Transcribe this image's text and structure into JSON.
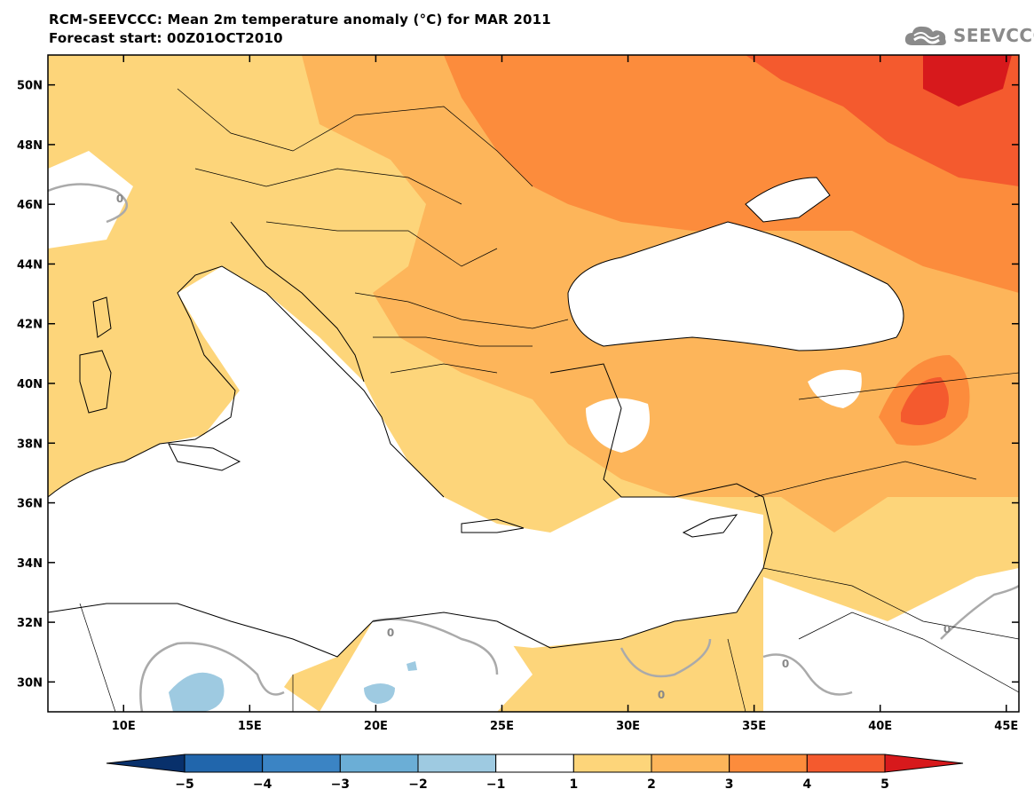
{
  "header": {
    "title": "RCM-SEEVCCC: Mean 2m temperature anomaly (°C) for MAR 2011",
    "subtitle": "Forecast start: 00Z01OCT2010",
    "logo_text": "SEEVCCC"
  },
  "map": {
    "lon_range": [
      7,
      45.5
    ],
    "lat_range": [
      29,
      51
    ],
    "lat_ticks": [
      {
        "value": 50,
        "label": "50N"
      },
      {
        "value": 48,
        "label": "48N"
      },
      {
        "value": 46,
        "label": "46N"
      },
      {
        "value": 44,
        "label": "44N"
      },
      {
        "value": 42,
        "label": "42N"
      },
      {
        "value": 40,
        "label": "40N"
      },
      {
        "value": 38,
        "label": "38N"
      },
      {
        "value": 36,
        "label": "36N"
      },
      {
        "value": 34,
        "label": "34N"
      },
      {
        "value": 32,
        "label": "32N"
      },
      {
        "value": 30,
        "label": "30N"
      }
    ],
    "lon_ticks": [
      {
        "value": 10,
        "label": "10E"
      },
      {
        "value": 15,
        "label": "15E"
      },
      {
        "value": 20,
        "label": "20E"
      },
      {
        "value": 25,
        "label": "25E"
      },
      {
        "value": 30,
        "label": "30E"
      },
      {
        "value": 35,
        "label": "35E"
      },
      {
        "value": 40,
        "label": "40E"
      },
      {
        "value": 45,
        "label": "45E"
      }
    ],
    "contour_label": "0"
  },
  "colorbar": {
    "bins": [
      {
        "from": -6,
        "to": -5,
        "color": "#08306b"
      },
      {
        "from": -5,
        "to": -4,
        "color": "#2166ac"
      },
      {
        "from": -4,
        "to": -3,
        "color": "#3b84c4"
      },
      {
        "from": -3,
        "to": -2,
        "color": "#6baed6"
      },
      {
        "from": -2,
        "to": -1,
        "color": "#9ecae1"
      },
      {
        "from": -1,
        "to": 1,
        "color": "#ffffff"
      },
      {
        "from": 1,
        "to": 2,
        "color": "#fdd57a"
      },
      {
        "from": 2,
        "to": 3,
        "color": "#fdb55a"
      },
      {
        "from": 3,
        "to": 4,
        "color": "#fc8c3c"
      },
      {
        "from": 4,
        "to": 5,
        "color": "#f45a2e"
      },
      {
        "from": 5,
        "to": 6,
        "color": "#d7191c"
      }
    ],
    "labels": [
      "−5",
      "−4",
      "−3",
      "−2",
      "−1",
      "1",
      "2",
      "3",
      "4",
      "5"
    ]
  }
}
